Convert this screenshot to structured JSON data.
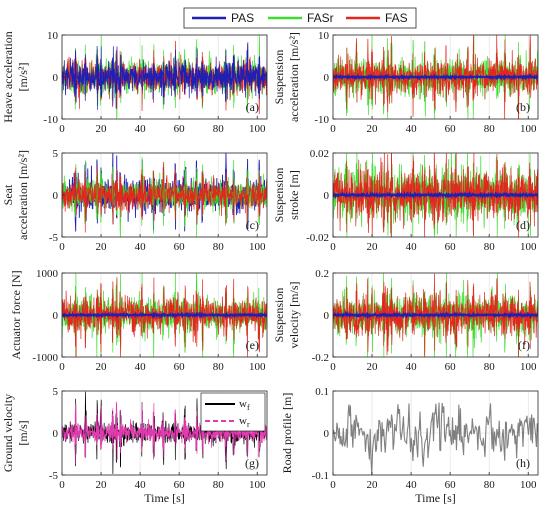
{
  "legend": [
    {
      "name": "PAS",
      "color": "#1f1fb4"
    },
    {
      "name": "FASr",
      "color": "#3ddc2e"
    },
    {
      "name": "FAS",
      "color": "#e0281e"
    }
  ],
  "colors": {
    "pink": "#e23bb0",
    "gray": "#808080",
    "black": "#000000"
  },
  "chart_data": [
    {
      "type": "line",
      "panel_label": "(a)",
      "ylabel": [
        "Heave acceleration",
        "[m/s²]"
      ],
      "xlim": [
        0,
        105
      ],
      "ylim": [
        -10,
        10
      ],
      "xticks": [
        0,
        20,
        40,
        60,
        80,
        100
      ],
      "yticks": [
        -10,
        0,
        10
      ],
      "grid": true,
      "amplitude_rms": 1.8,
      "spike_max": 7
    },
    {
      "type": "line",
      "panel_label": "(b)",
      "ylabel": [
        "Suspension",
        "acceleration [m/s²]"
      ],
      "xlim": [
        0,
        105
      ],
      "ylim": [
        -10,
        10
      ],
      "xticks": [
        0,
        20,
        40,
        60,
        80,
        100
      ],
      "yticks": [
        -10,
        0,
        10
      ],
      "grid": true,
      "amplitude_rms": 2.0,
      "spike_max": 9
    },
    {
      "type": "line",
      "panel_label": "(c)",
      "ylabel": [
        "Seat",
        "acceleration [m/s²]"
      ],
      "xlim": [
        0,
        105
      ],
      "ylim": [
        -5,
        5
      ],
      "xticks": [
        0,
        20,
        40,
        60,
        80,
        100
      ],
      "yticks": [
        -5,
        0,
        5
      ],
      "grid": true,
      "amplitude_rms": 0.8,
      "spike_max": 3.5
    },
    {
      "type": "line",
      "panel_label": "(d)",
      "ylabel": [
        "Suspension",
        "stroke [m]"
      ],
      "xlim": [
        0,
        105
      ],
      "ylim": [
        -0.02,
        0.02
      ],
      "xticks": [
        0,
        20,
        40,
        60,
        80,
        100
      ],
      "yticks": [
        -0.02,
        0,
        0.02
      ],
      "grid": true,
      "amplitude_rms": 0.006,
      "spike_max": 0.018
    },
    {
      "type": "line",
      "panel_label": "(e)",
      "ylabel": [
        "Actuator force [N]"
      ],
      "xlim": [
        0,
        105
      ],
      "ylim": [
        -1000,
        1000
      ],
      "xticks": [
        0,
        20,
        40,
        60,
        80,
        100
      ],
      "yticks": [
        -1000,
        0,
        1000
      ],
      "grid": true,
      "amplitude_rms": 200,
      "spike_max": 850
    },
    {
      "type": "line",
      "panel_label": "(f)",
      "ylabel": [
        "Suspension",
        "velocity [m/s]"
      ],
      "xlim": [
        0,
        105
      ],
      "ylim": [
        -0.2,
        0.2
      ],
      "xticks": [
        0,
        20,
        40,
        60,
        80,
        100
      ],
      "yticks": [
        -0.2,
        0,
        0.2
      ],
      "grid": true,
      "amplitude_rms": 0.045,
      "spike_max": 0.18
    },
    {
      "type": "line",
      "panel_label": "(g)",
      "ylabel": [
        "Ground velocity",
        "[m/s]"
      ],
      "xlabel": "Time [s]",
      "xlim": [
        0,
        105
      ],
      "ylim": [
        -5,
        5
      ],
      "xticks": [
        0,
        20,
        40,
        60,
        80,
        100
      ],
      "yticks": [
        -5,
        0,
        5
      ],
      "grid": true,
      "series": [
        "w_f",
        "w_r"
      ],
      "amplitude_rms": 0.6,
      "spike_max": 4.5
    },
    {
      "type": "line",
      "panel_label": "(h)",
      "ylabel": [
        "Road profile [m]"
      ],
      "xlabel": "Time [s]",
      "xlim": [
        0,
        105
      ],
      "ylim": [
        -0.1,
        0.1
      ],
      "xticks": [
        0,
        20,
        40,
        60,
        80,
        100
      ],
      "yticks": [
        -0.1,
        0,
        0.1
      ],
      "grid": true,
      "amplitude_rms": 0.025,
      "spike_max": 0.065
    }
  ]
}
